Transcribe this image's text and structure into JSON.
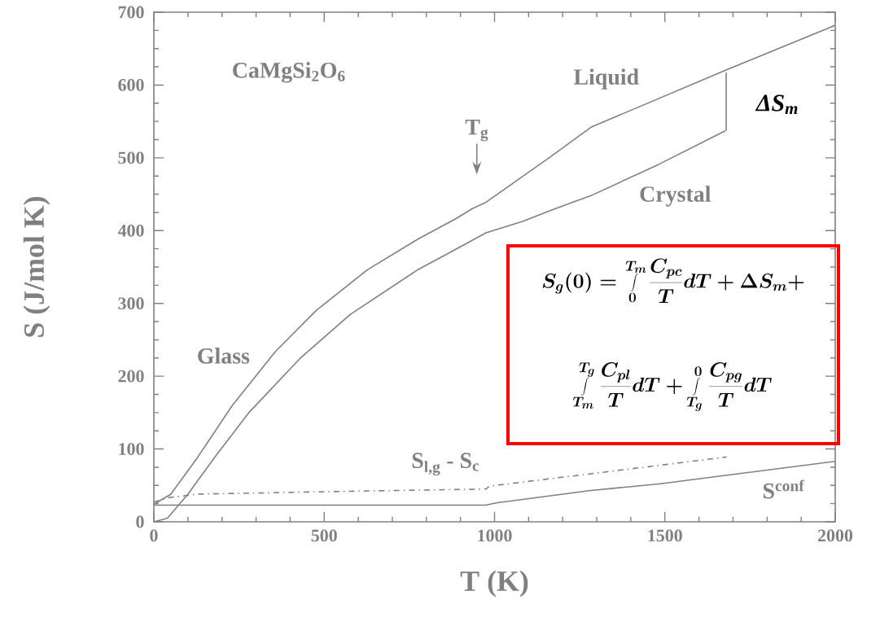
{
  "chart_data": {
    "type": "line",
    "xlabel": "T  (K)",
    "ylabel": "S (J/mol K)",
    "xlim": [
      0,
      2000
    ],
    "ylim": [
      0,
      700
    ],
    "xticks": [
      0,
      500,
      1000,
      1500,
      2000
    ],
    "yticks": [
      0,
      100,
      200,
      300,
      400,
      500,
      600,
      700
    ],
    "series": [
      {
        "color": "#808080",
        "line_style": "solid",
        "x": [
          0,
          50,
          129,
          229,
          357,
          476,
          626,
          774,
          885,
          934,
          975,
          1160,
          1283,
          1681,
          2000
        ],
        "values": [
          24,
          38,
          89,
          159,
          234,
          290,
          346,
          388,
          416,
          430,
          439,
          500,
          542,
          621,
          682
        ]
      },
      {
        "color": "#808080",
        "line_style": "solid",
        "x": [
          0,
          40,
          100,
          179,
          279,
          428,
          577,
          774,
          885,
          975,
          1084,
          1160,
          1283,
          1482,
          1677
        ],
        "values": [
          0,
          5,
          38,
          89,
          150,
          224,
          285,
          346,
          374,
          397,
          413,
          427,
          448,
          491,
          537
        ]
      },
      {
        "color": "#808080",
        "line_style": "solid",
        "x": [
          0,
          975,
          1005,
          1283,
          1482,
          2000
        ],
        "values": [
          23,
          23,
          26,
          43,
          52,
          83
        ]
      },
      {
        "color": "#808080",
        "line_style": "dashed",
        "x": [
          0,
          40,
          129,
          577,
          975,
          985,
          1283,
          1681
        ],
        "values": [
          27,
          33,
          38,
          42,
          45,
          49,
          66,
          89
        ]
      },
      {
        "color": "#808080",
        "line_style": "solid",
        "x": [
          1680,
          1680
        ],
        "values": [
          537,
          617
        ]
      }
    ],
    "annotations": [
      "CaMgSi$_{2}$O$_{6}$",
      "T$_{g}$",
      "Liquid",
      "Crystal",
      "Glass",
      "S$_{l,g}$ - S$_{c}$",
      "S$^{conf}$",
      "ΔS$_{m}$",
      "S_g(0)=\\int\\limits_{0}^{T_m}\\frac{C_{pc}}{T}dT+\\Delta S_m+",
      "\\int\\limits_{T_m}^{T_g}\\frac{C_{pl}}{T}dT+\\int\\limits_{T_g}^{0}\\frac{C_{pg}}{T}dT"
    ]
  }
}
